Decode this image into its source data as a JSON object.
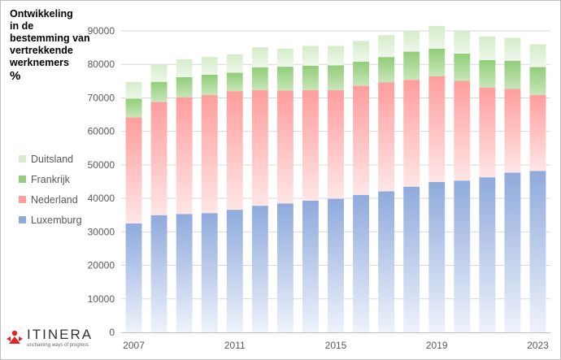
{
  "chart_data": {
    "type": "bar",
    "stacked": true,
    "title_lines": [
      "Ontwikkeling",
      "in de",
      "bestemming van",
      "vertrekkende",
      "werknemers"
    ],
    "unit_label": "%",
    "categories": [
      "2007",
      "2008",
      "2009",
      "2010",
      "2011",
      "2012",
      "2013",
      "2014",
      "2015",
      "2016",
      "2017",
      "2018",
      "2019",
      "2020",
      "2021",
      "2022",
      "2023"
    ],
    "x_tick_labels": [
      "2007",
      "2011",
      "2015",
      "2019",
      "2023"
    ],
    "ylim": [
      0,
      90000
    ],
    "y_ticks": [
      0,
      10000,
      20000,
      30000,
      40000,
      50000,
      60000,
      70000,
      80000,
      90000
    ],
    "grid": true,
    "legend_position": "left",
    "series": [
      {
        "name": "Luxemburg",
        "color": "#8faadc",
        "color_light": "#eef2fb",
        "values": [
          32500,
          35000,
          35300,
          35600,
          36600,
          37800,
          38500,
          39300,
          39900,
          41000,
          42100,
          43500,
          44900,
          45300,
          46300,
          47700,
          48200
        ]
      },
      {
        "name": "Nederland",
        "color": "#ff9d9d",
        "color_light": "#ffe6e6",
        "values": [
          31700,
          33800,
          34900,
          35300,
          35400,
          34500,
          33700,
          33000,
          32400,
          32600,
          32500,
          31900,
          31600,
          29800,
          26800,
          25000,
          22700
        ]
      },
      {
        "name": "Frankrijk",
        "color": "#92cd7a",
        "color_light": "#c7e6b8",
        "values": [
          5600,
          6000,
          6000,
          6000,
          5500,
          6800,
          7100,
          7300,
          7400,
          7200,
          7600,
          8400,
          8200,
          8100,
          8200,
          8400,
          8300
        ]
      },
      {
        "name": "Duitsland",
        "color": "#d5ecca",
        "color_light": "#eef7e9",
        "values": [
          4900,
          5100,
          5300,
          5300,
          5500,
          6000,
          5400,
          5900,
          5800,
          6200,
          6500,
          6200,
          6800,
          6800,
          7000,
          6800,
          6800
        ]
      }
    ],
    "legend_order": [
      "Duitsland",
      "Frankrijk",
      "Nederland",
      "Luxemburg"
    ]
  },
  "logo": {
    "name": "ITINERA",
    "tagline": "unchaining ways of progress"
  }
}
